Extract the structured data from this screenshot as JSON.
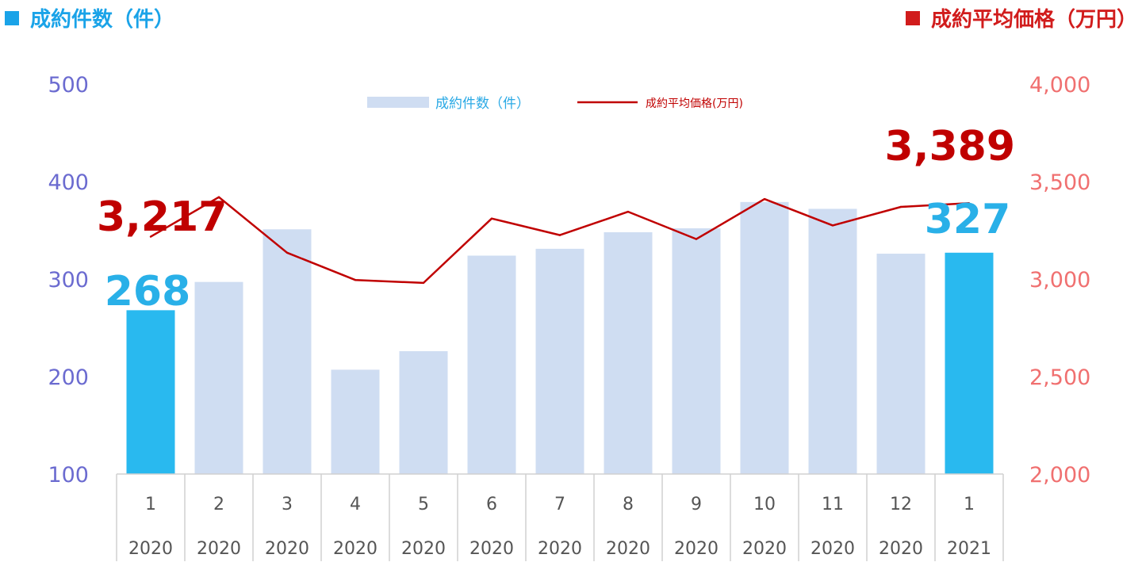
{
  "header": {
    "left_title": "成約件数（件）",
    "right_title": "成約平均価格（万円）"
  },
  "colors": {
    "bar_highlight": "#29b9ef",
    "bar_normal": "#cfddf2",
    "line": "#c00000",
    "left_axis_text": "#6b6bd0",
    "right_axis_text": "#f07070",
    "left_callout": "#29b0e8",
    "right_callout": "#c00000",
    "left_header": "#1aa3e8",
    "right_header": "#d11c1c"
  },
  "chart_data": {
    "type": "bar+line",
    "categories": [
      "1",
      "2",
      "3",
      "4",
      "5",
      "6",
      "7",
      "8",
      "9",
      "10",
      "11",
      "12",
      "1"
    ],
    "years": [
      "2020",
      "2020",
      "2020",
      "2020",
      "2020",
      "2020",
      "2020",
      "2020",
      "2020",
      "2020",
      "2020",
      "2020",
      "2021"
    ],
    "series": [
      {
        "name": "成約件数（件）",
        "type": "bar",
        "axis": "left",
        "values": [
          268,
          297,
          351,
          207,
          226,
          324,
          331,
          348,
          352,
          379,
          372,
          326,
          327
        ]
      },
      {
        "name": "成約平均価格(万円)",
        "type": "line",
        "axis": "right",
        "values": [
          3217,
          3420,
          3135,
          2995,
          2980,
          3310,
          3225,
          3345,
          3205,
          3410,
          3275,
          3370,
          3389
        ]
      }
    ],
    "highlighted_indices": [
      0,
      12
    ],
    "left_axis": {
      "ylim": [
        100,
        500
      ],
      "ticks": [
        "500",
        "400",
        "300",
        "200",
        "100"
      ]
    },
    "right_axis": {
      "ylim": [
        2000,
        4000
      ],
      "ticks": [
        "4,000",
        "3,500",
        "3,000",
        "2,500",
        "2,000"
      ]
    },
    "callouts": {
      "bar_first": "268",
      "bar_last": "327",
      "line_first": "3,217",
      "line_last": "3,389"
    },
    "legend": {
      "bar_label": "成約件数（件）",
      "line_label": "成約平均価格(万円)",
      "position": "top-center"
    },
    "grid": false
  }
}
